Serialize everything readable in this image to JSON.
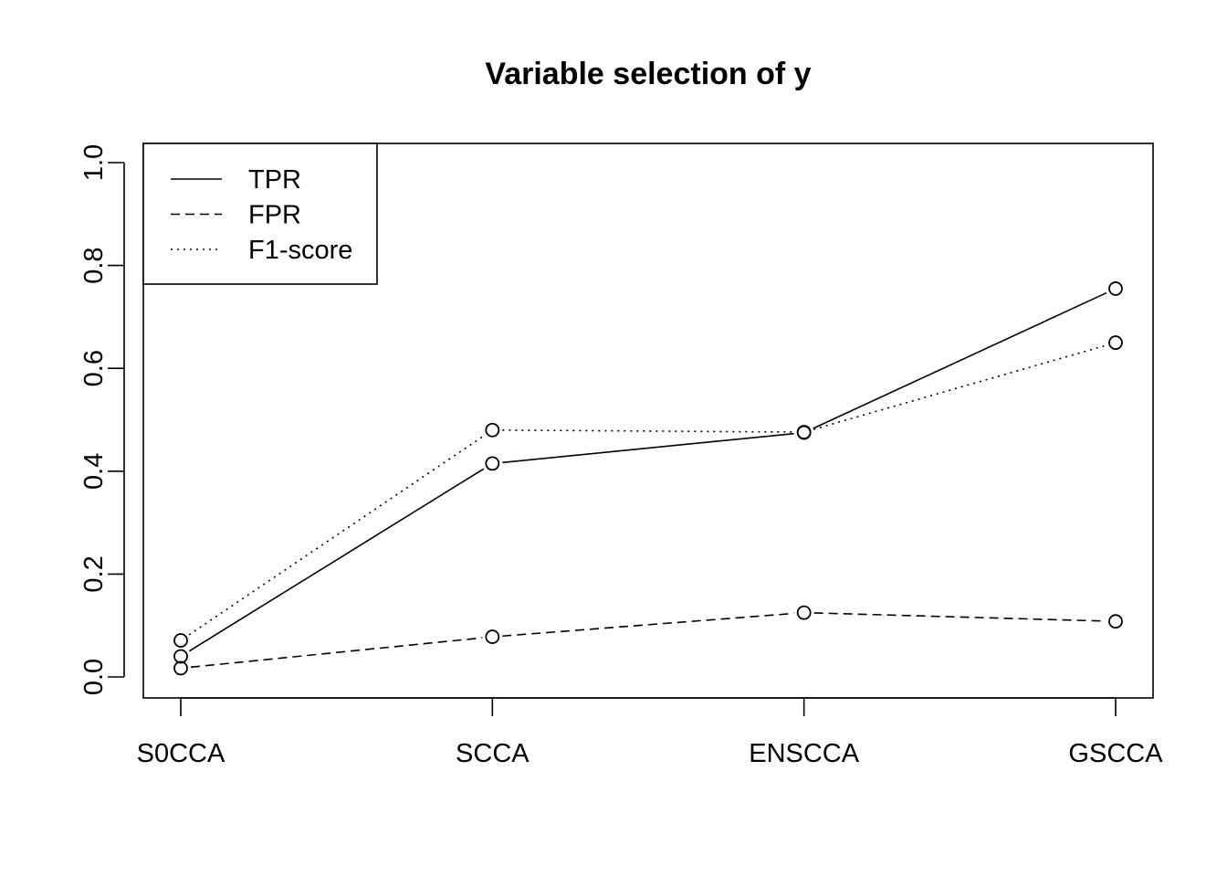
{
  "chart_data": {
    "type": "line",
    "title": "Variable selection of y",
    "xlabel": "",
    "ylabel": "",
    "categories": [
      "S0CCA",
      "SCCA",
      "ENSCCA",
      "GSCCA"
    ],
    "ylim": [
      0,
      1.0
    ],
    "yticks": [
      "0.0",
      "0.2",
      "0.4",
      "0.6",
      "0.8",
      "1.0"
    ],
    "grid": false,
    "legend_position": "top-left",
    "series": [
      {
        "name": "TPR",
        "line_style": "solid",
        "values": [
          0.04,
          0.415,
          0.475,
          0.755
        ]
      },
      {
        "name": "FPR",
        "line_style": "dashed",
        "values": [
          0.017,
          0.078,
          0.125,
          0.108
        ]
      },
      {
        "name": "F1-score",
        "line_style": "dotted",
        "values": [
          0.071,
          0.48,
          0.476,
          0.65
        ]
      }
    ]
  }
}
